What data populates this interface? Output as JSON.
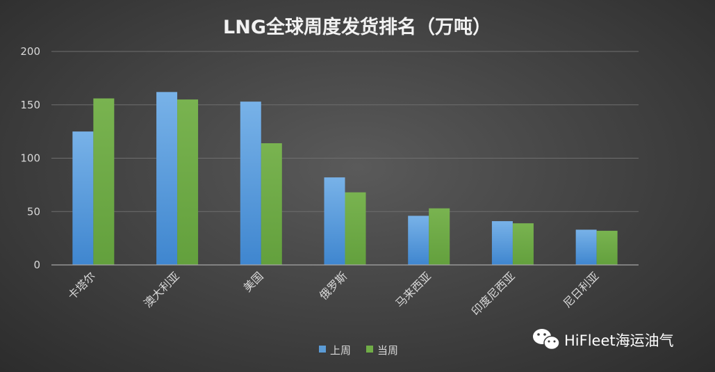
{
  "chart_data": {
    "type": "bar",
    "title": "LNG全球周度发货排名（万吨）",
    "categories": [
      "卡塔尔",
      "澳大利亚",
      "美国",
      "俄罗斯",
      "马来西亚",
      "印度尼西亚",
      "尼日利亚"
    ],
    "series": [
      {
        "name": "上周",
        "values": [
          125,
          162,
          153,
          82,
          46,
          41,
          33
        ]
      },
      {
        "name": "当周",
        "values": [
          156,
          155,
          114,
          68,
          53,
          39,
          32
        ]
      }
    ],
    "ylim": [
      0,
      200
    ],
    "yticks": [
      0,
      50,
      100,
      150,
      200
    ],
    "grid": true,
    "legend_position": "bottom",
    "colors": [
      "#5b9bd5",
      "#70ad47"
    ]
  },
  "watermark": {
    "text": "HiFleet海运油气",
    "icon": "wechat-icon"
  }
}
